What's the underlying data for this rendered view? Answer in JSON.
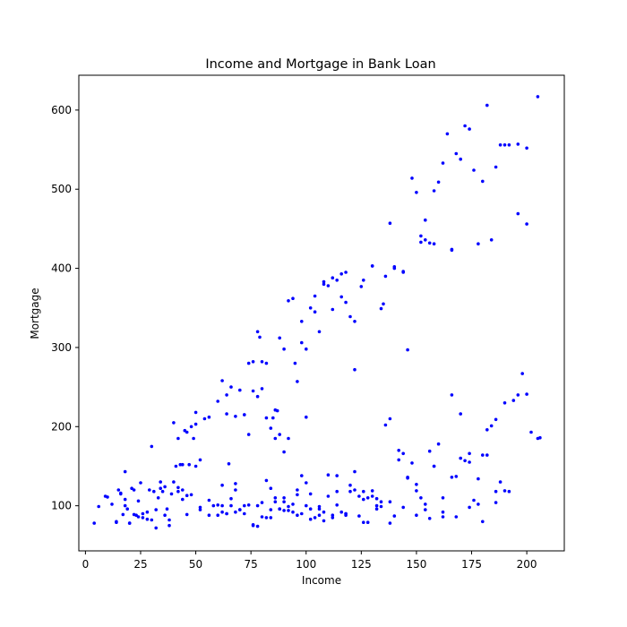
{
  "chart_data": {
    "type": "scatter",
    "title": "Income and Mortgage in Bank Loan",
    "xlabel": "Income",
    "ylabel": "Mortgage",
    "xlim": [
      -3,
      217
    ],
    "ylim": [
      43,
      644
    ],
    "xticks": [
      0,
      25,
      50,
      75,
      100,
      125,
      150,
      175,
      200
    ],
    "yticks": [
      100,
      200,
      300,
      400,
      500,
      600
    ],
    "grid": false,
    "legend": "none",
    "marker_color": "#0000ff",
    "x": [
      4,
      6,
      9,
      12,
      14,
      15,
      16,
      17,
      18,
      18,
      19,
      20,
      21,
      22,
      23,
      24,
      25,
      26,
      28,
      29,
      30,
      31,
      32,
      33,
      34,
      35,
      36,
      37,
      38,
      39,
      40,
      41,
      42,
      43,
      44,
      45,
      46,
      47,
      48,
      49,
      50,
      52,
      54,
      56,
      58,
      60,
      62,
      64,
      65,
      66,
      68,
      70,
      72,
      74,
      76,
      78,
      80,
      82,
      84,
      86,
      88,
      90,
      92,
      94,
      96,
      98,
      100,
      102,
      104,
      106,
      108,
      110,
      112,
      114,
      116,
      118,
      120,
      122,
      124,
      126,
      128,
      130,
      132,
      60,
      62,
      64,
      66,
      68,
      70,
      72,
      74,
      76,
      78,
      79,
      80,
      82,
      84,
      85,
      86,
      87,
      88,
      90,
      92,
      94,
      95,
      96,
      98,
      100,
      102,
      104,
      106,
      108,
      110,
      112,
      114,
      116,
      118,
      120,
      122,
      125,
      130,
      135,
      40,
      42,
      44,
      46,
      48,
      50,
      52,
      76,
      78,
      80,
      82,
      86,
      88,
      90,
      92,
      98,
      100,
      104,
      108,
      112,
      116,
      118,
      122,
      126,
      130,
      134,
      136,
      138,
      140,
      144,
      146,
      150,
      152,
      154,
      156,
      158,
      160,
      164,
      136,
      140,
      144,
      148,
      152,
      154,
      158,
      162,
      166,
      170,
      174,
      178,
      182,
      186,
      190,
      196,
      200,
      205,
      166,
      168,
      172,
      176,
      180,
      184,
      188,
      192,
      196,
      200,
      134,
      138,
      142,
      146,
      150,
      154,
      158,
      162,
      166,
      170,
      174,
      178,
      182,
      186,
      190,
      194,
      198,
      200,
      205,
      10,
      14,
      20,
      24,
      28,
      32,
      36,
      44,
      52,
      56,
      62,
      68,
      72,
      76,
      84,
      90,
      96,
      102,
      108,
      114,
      120,
      126,
      132,
      138,
      144,
      150,
      156,
      162,
      168,
      174,
      180,
      186,
      190,
      62,
      64,
      66,
      70,
      74,
      78,
      82,
      86,
      90,
      94,
      98,
      102,
      106,
      110,
      114,
      118,
      122,
      126,
      130,
      134,
      138,
      142,
      146,
      150,
      154,
      158,
      162,
      166,
      170,
      174,
      178,
      182,
      186,
      16,
      18,
      22,
      26,
      30,
      34,
      38,
      42,
      46,
      50,
      56,
      60,
      64,
      68,
      72,
      80,
      84,
      88,
      92,
      96,
      100,
      106,
      112,
      118,
      124,
      128,
      132,
      140,
      144,
      148,
      152,
      156,
      160,
      168,
      172,
      176,
      180,
      184,
      188,
      192,
      196,
      202,
      206
    ],
    "y": [
      78,
      99,
      112,
      102,
      80,
      120,
      115,
      89,
      108,
      143,
      96,
      78,
      122,
      120,
      88,
      106,
      129,
      85,
      83,
      120,
      175,
      118,
      95,
      110,
      130,
      118,
      124,
      96,
      75,
      115,
      130,
      150,
      118,
      152,
      120,
      195,
      113,
      152,
      114,
      185,
      150,
      98,
      210,
      212,
      100,
      88,
      92,
      90,
      153,
      100,
      120,
      95,
      90,
      190,
      75,
      100,
      86,
      85,
      95,
      110,
      96,
      105,
      99,
      92,
      88,
      90,
      100,
      96,
      85,
      88,
      92,
      112,
      85,
      118,
      92,
      88,
      118,
      120,
      112,
      118,
      110,
      119,
      100,
      232,
      258,
      240,
      250,
      213,
      246,
      215,
      280,
      282,
      320,
      313,
      282,
      280,
      198,
      211,
      221,
      220,
      312,
      298,
      359,
      362,
      280,
      257,
      306,
      298,
      350,
      365,
      320,
      380,
      378,
      388,
      385,
      393,
      395,
      339,
      333,
      377,
      403,
      355,
      205,
      185,
      152,
      193,
      200,
      218,
      158,
      245,
      238,
      248,
      211,
      185,
      190,
      168,
      185,
      333,
      212,
      345,
      383,
      348,
      364,
      357,
      272,
      385,
      403,
      349,
      390,
      457,
      402,
      395,
      297,
      496,
      433,
      461,
      432,
      431,
      509,
      570,
      202,
      400,
      396,
      514,
      441,
      436,
      498,
      533,
      423,
      538,
      576,
      431,
      606,
      528,
      556,
      557,
      456,
      617,
      424,
      545,
      580,
      524,
      510,
      436,
      556,
      556,
      469,
      552,
      105,
      210,
      170,
      135,
      127,
      102,
      150,
      110,
      240,
      216,
      166,
      134,
      196,
      209,
      230,
      233,
      267,
      241,
      185,
      111,
      79,
      78,
      86,
      92,
      72,
      88,
      108,
      95,
      88,
      100,
      128,
      100,
      76,
      122,
      110,
      120,
      115,
      81,
      138,
      126,
      79,
      96,
      78,
      98,
      88,
      84,
      92,
      86,
      98,
      80,
      104,
      119,
      126,
      90,
      109,
      95,
      101,
      74,
      132,
      105,
      94,
      102,
      138,
      83,
      99,
      139,
      101,
      90,
      143,
      108,
      112,
      99,
      105,
      158,
      136,
      119,
      95,
      150,
      86,
      136,
      160,
      155,
      102,
      164,
      118,
      116,
      100,
      89,
      90,
      82,
      122,
      82,
      123,
      89,
      203,
      107,
      101,
      216,
      92,
      215,
      104,
      85,
      96,
      94,
      114,
      129,
      96,
      88,
      90,
      87,
      79,
      109,
      87,
      166,
      154,
      110,
      169,
      178,
      137,
      157,
      107,
      164,
      201,
      130,
      118,
      240,
      193,
      186
    ]
  }
}
